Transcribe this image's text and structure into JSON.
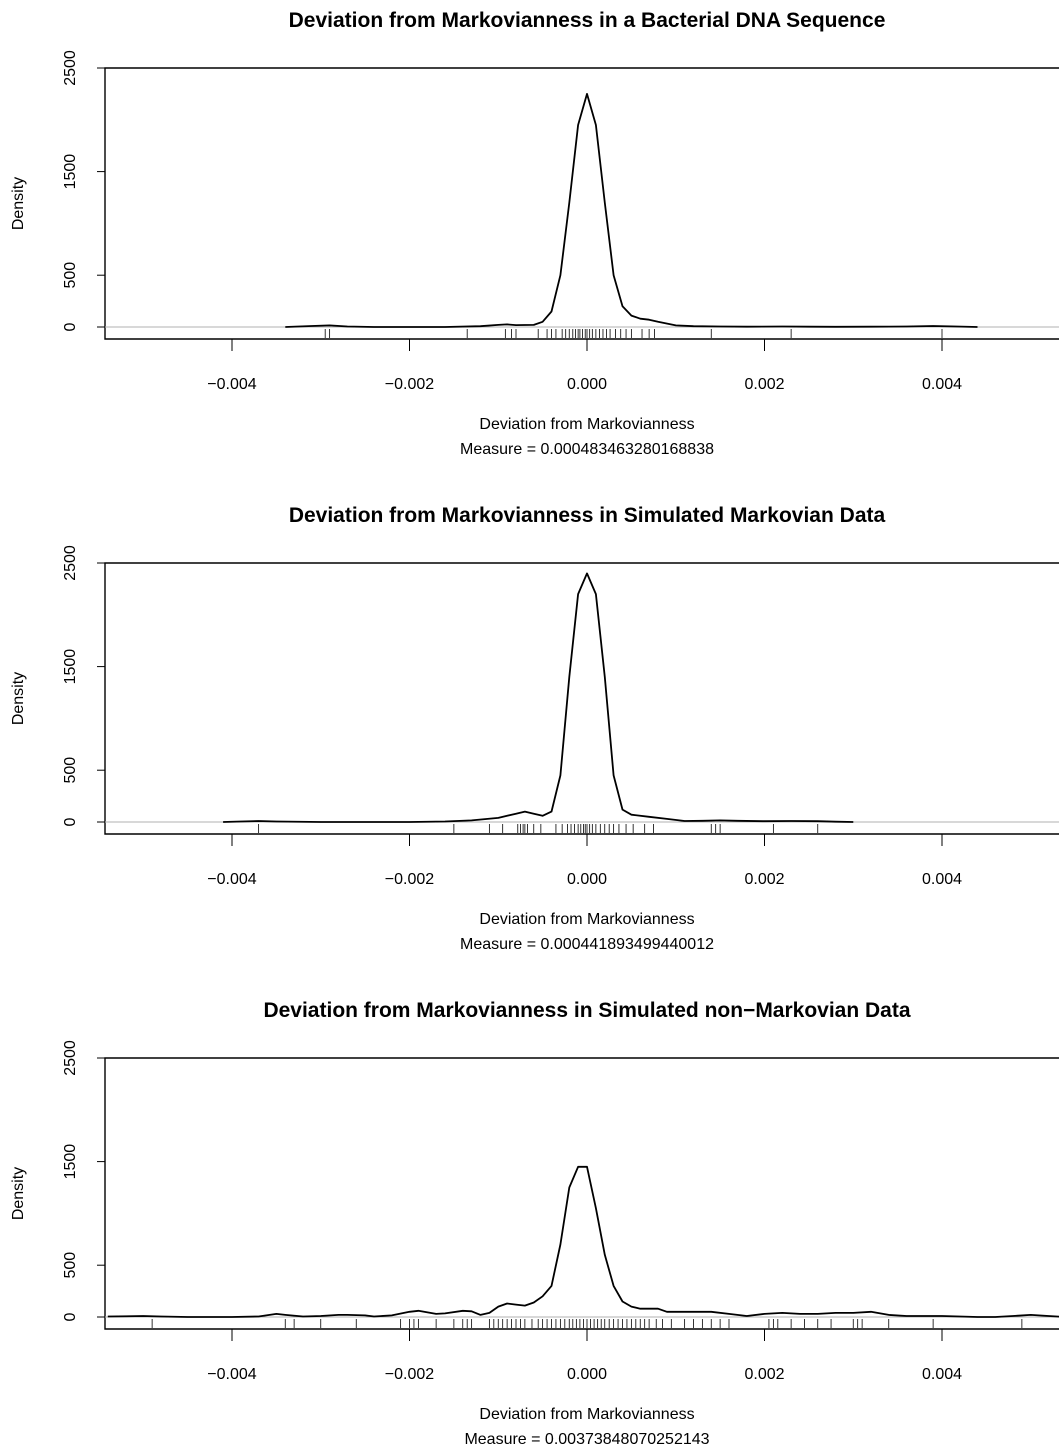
{
  "chart_data": [
    {
      "type": "line",
      "title": "Deviation from Markovianness in a Bacterial DNA Sequence",
      "xlabel": "Deviation from Markovianness",
      "subtitle": "Measure = 0.000483463280168838",
      "ylabel": "Density",
      "xlim": [
        -0.0054,
        0.0054
      ],
      "ylim": [
        0,
        2500
      ],
      "x_ticks": [
        "-0.004",
        "-0.002",
        "0.000",
        "0.002",
        "0.004"
      ],
      "y_ticks": [
        "0",
        "500",
        "1500",
        "2500"
      ],
      "series": [
        {
          "x": [
            -0.0034,
            -0.0031,
            -0.0029,
            -0.0027,
            -0.0024,
            -0.002,
            -0.0016,
            -0.0012,
            -0.001,
            -0.0009,
            -0.0008,
            -0.0006,
            -0.0005,
            -0.0004,
            -0.0003,
            -0.0002,
            -0.0001,
            0,
            0.0001,
            0.0002,
            0.0003,
            0.0004,
            0.0005,
            0.0006,
            0.0007,
            0.0008,
            0.001,
            0.0012,
            0.0015,
            0.0018,
            0.0022,
            0.0025,
            0.0028,
            0.0032,
            0.0036,
            0.0039,
            0.0041,
            0.0044
          ],
          "y": [
            0,
            10,
            15,
            5,
            0,
            0,
            0,
            8,
            20,
            25,
            18,
            20,
            50,
            150,
            500,
            1200,
            1950,
            2250,
            1950,
            1200,
            500,
            200,
            110,
            80,
            70,
            50,
            15,
            8,
            5,
            3,
            5,
            3,
            2,
            3,
            5,
            10,
            6,
            0
          ]
        }
      ],
      "rug": [
        -0.00295,
        -0.0029,
        -0.00135,
        -0.00092,
        -0.00085,
        -0.0008,
        -0.00055,
        -0.00045,
        -0.0004,
        -0.00035,
        -0.00028,
        -0.00024,
        -0.0002,
        -0.00016,
        -0.00013,
        -0.0001,
        -8e-05,
        -5e-05,
        -2e-05,
        0.0,
        3e-05,
        6e-05,
        0.0001,
        0.00014,
        0.00018,
        0.00022,
        0.00026,
        0.00032,
        0.00038,
        0.00044,
        0.0005,
        0.00062,
        0.0007,
        0.00076,
        0.0014,
        0.0023,
        0.004
      ]
    },
    {
      "type": "line",
      "title": "Deviation from Markovianness in Simulated Markovian Data",
      "xlabel": "Deviation from Markovianness",
      "subtitle": "Measure = 0.000441893499440012",
      "ylabel": "Density",
      "xlim": [
        -0.0054,
        0.0054
      ],
      "ylim": [
        0,
        2500
      ],
      "x_ticks": [
        "-0.004",
        "-0.002",
        "0.000",
        "0.002",
        "0.004"
      ],
      "y_ticks": [
        "0",
        "500",
        "1500",
        "2500"
      ],
      "series": [
        {
          "x": [
            -0.0041,
            -0.0039,
            -0.0037,
            -0.0035,
            -0.003,
            -0.0025,
            -0.002,
            -0.0016,
            -0.0013,
            -0.001,
            -0.0008,
            -0.0007,
            -0.0006,
            -0.0005,
            -0.0004,
            -0.0003,
            -0.0002,
            -0.0001,
            0,
            0.0001,
            0.0002,
            0.0003,
            0.0004,
            0.0005,
            0.0007,
            0.0009,
            0.0011,
            0.0013,
            0.0015,
            0.0017,
            0.002,
            0.0023,
            0.0026,
            0.0028,
            0.003
          ],
          "y": [
            0,
            5,
            10,
            5,
            0,
            0,
            0,
            5,
            15,
            40,
            80,
            100,
            80,
            60,
            100,
            450,
            1400,
            2200,
            2400,
            2200,
            1400,
            450,
            120,
            70,
            50,
            30,
            10,
            12,
            15,
            12,
            8,
            10,
            8,
            3,
            0
          ]
        }
      ],
      "rug": [
        -0.0037,
        -0.0015,
        -0.0011,
        -0.00095,
        -0.00078,
        -0.00075,
        -0.00072,
        -0.0007,
        -0.00067,
        -0.0006,
        -0.00052,
        -0.00035,
        -0.00028,
        -0.00022,
        -0.00018,
        -0.00014,
        -0.0001,
        -7e-05,
        -4e-05,
        -2e-05,
        0.0,
        3e-05,
        6e-05,
        0.0001,
        0.00015,
        0.0002,
        0.00025,
        0.0003,
        0.00036,
        0.00044,
        0.00052,
        0.00065,
        0.00075,
        0.0014,
        0.00145,
        0.0015,
        0.0021,
        0.0026
      ]
    },
    {
      "type": "line",
      "title": "Deviation from Markovianness in Simulated non−Markovian Data",
      "xlabel": "Deviation from Markovianness",
      "subtitle": "Measure = 0.00373848070252143",
      "ylabel": "Density",
      "xlim": [
        -0.0054,
        0.0054
      ],
      "ylim": [
        0,
        2500
      ],
      "x_ticks": [
        "-0.004",
        "-0.002",
        "0.000",
        "0.002",
        "0.004"
      ],
      "y_ticks": [
        "0",
        "500",
        "1500",
        "2500"
      ],
      "series": [
        {
          "x": [
            -0.0054,
            -0.005,
            -0.0048,
            -0.0045,
            -0.004,
            -0.0037,
            -0.0035,
            -0.0034,
            -0.0032,
            -0.003,
            -0.0028,
            -0.0027,
            -0.0025,
            -0.0024,
            -0.0022,
            -0.002,
            -0.0019,
            -0.0017,
            -0.0016,
            -0.0014,
            -0.0013,
            -0.0012,
            -0.0011,
            -0.001,
            -0.0009,
            -0.0008,
            -0.0007,
            -0.0006,
            -0.0005,
            -0.0004,
            -0.0003,
            -0.0002,
            -0.0001,
            0,
            0.0001,
            0.0002,
            0.0003,
            0.0004,
            0.0005,
            0.0006,
            0.0007,
            0.0008,
            0.0009,
            0.001,
            0.0012,
            0.0014,
            0.0016,
            0.0018,
            0.002,
            0.0022,
            0.0024,
            0.0026,
            0.0028,
            0.003,
            0.0032,
            0.0034,
            0.0036,
            0.0038,
            0.004,
            0.0042,
            0.0044,
            0.0046,
            0.0048,
            0.005,
            0.0052,
            0.0054
          ],
          "y": [
            5,
            10,
            5,
            0,
            0,
            5,
            30,
            20,
            5,
            10,
            20,
            20,
            15,
            5,
            15,
            50,
            60,
            30,
            35,
            60,
            55,
            20,
            40,
            100,
            130,
            120,
            110,
            140,
            200,
            300,
            700,
            1250,
            1450,
            1450,
            1050,
            600,
            300,
            150,
            100,
            80,
            80,
            80,
            50,
            50,
            50,
            50,
            30,
            10,
            30,
            40,
            30,
            30,
            40,
            40,
            50,
            20,
            10,
            10,
            10,
            5,
            0,
            0,
            10,
            20,
            10,
            0
          ]
        }
      ],
      "rug": [
        -0.0049,
        -0.0034,
        -0.0033,
        -0.003,
        -0.0026,
        -0.0021,
        -0.002,
        -0.00195,
        -0.0019,
        -0.0017,
        -0.0015,
        -0.0014,
        -0.00135,
        -0.0013,
        -0.0011,
        -0.00105,
        -0.001,
        -0.00095,
        -0.0009,
        -0.00085,
        -0.0008,
        -0.00075,
        -0.0007,
        -0.00062,
        -0.00055,
        -0.0005,
        -0.00045,
        -0.0004,
        -0.00035,
        -0.0003,
        -0.00025,
        -0.0002,
        -0.00016,
        -0.00012,
        -8e-05,
        -4e-05,
        0.0,
        4e-05,
        8e-05,
        0.00012,
        0.00016,
        0.0002,
        0.00025,
        0.0003,
        0.00035,
        0.0004,
        0.00045,
        0.0005,
        0.00055,
        0.0006,
        0.00065,
        0.0007,
        0.00078,
        0.00085,
        0.00095,
        0.0011,
        0.0012,
        0.0013,
        0.0014,
        0.0015,
        0.0016,
        0.00205,
        0.0021,
        0.00215,
        0.0023,
        0.00245,
        0.0026,
        0.00275,
        0.003,
        0.00305,
        0.0031,
        0.0034,
        0.0039,
        0.0049
      ]
    }
  ]
}
